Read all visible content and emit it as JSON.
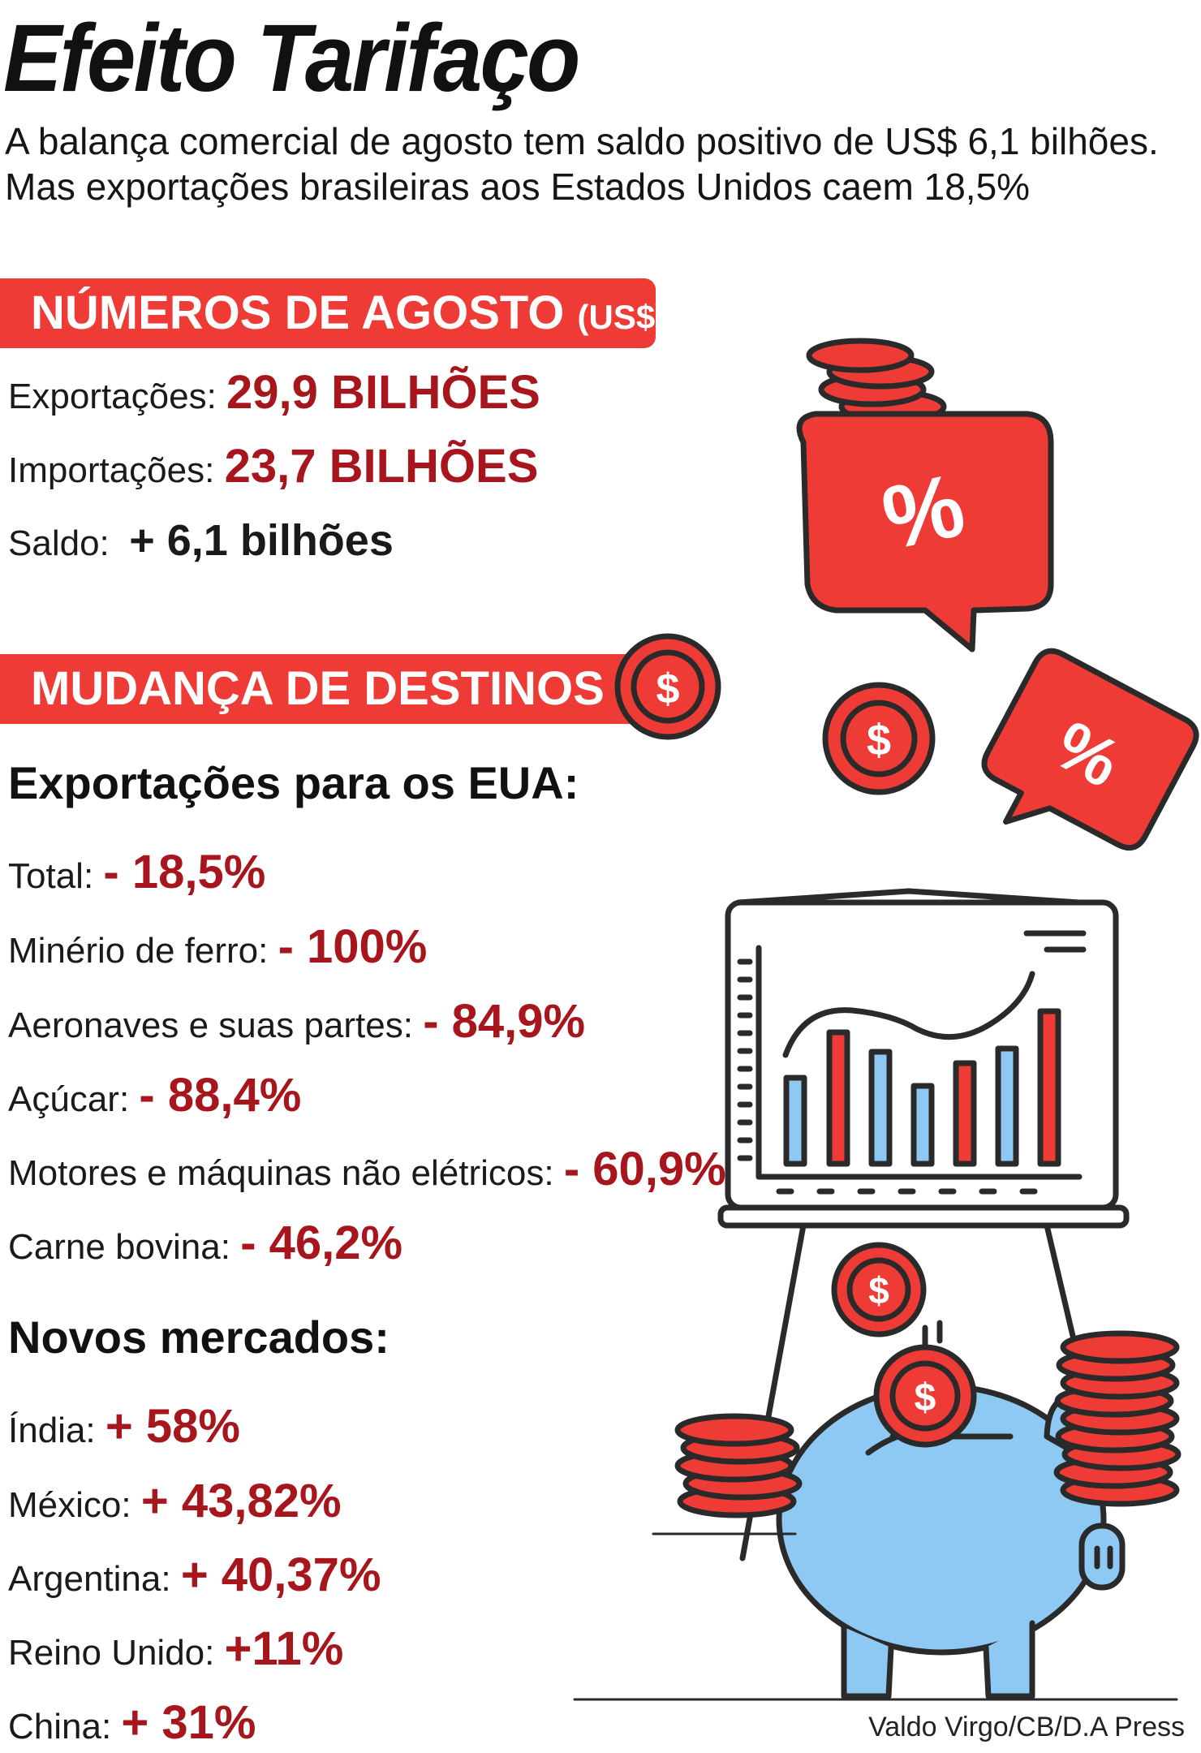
{
  "title": "Efeito Tarifaço",
  "subtitle_line1": "A balança comercial de agosto tem saldo positivo de US$ 6,1 bilhões.",
  "subtitle_line2": "Mas exportações brasileiras aos Estados Unidos caem 18,5%",
  "section1": {
    "heading": "NÚMEROS DE AGOSTO",
    "heading_unit": "(US$)",
    "items": [
      {
        "label": "Exportações:",
        "value": "29,9 BILHÕES"
      },
      {
        "label": "Importações:",
        "value": "23,7 BILHÕES"
      },
      {
        "label": "Saldo:",
        "value": "+ 6,1 bilhões"
      }
    ]
  },
  "section2": {
    "heading": "MUDANÇA DE DESTINOS",
    "usa_heading": "Exportações para os EUA:",
    "usa_items": [
      {
        "label": "Total:",
        "value": "- 18,5%"
      },
      {
        "label": "Minério de ferro:",
        "value": "- 100%"
      },
      {
        "label": "Aeronaves e suas partes:",
        "value": "- 84,9%"
      },
      {
        "label": "Açúcar:",
        "value": "- 88,4%"
      },
      {
        "label": "Motores e máquinas não elétricos:",
        "value": "- 60,9%"
      },
      {
        "label": "Carne bovina:",
        "value": "- 46,2%"
      }
    ],
    "new_heading": "Novos mercados:",
    "new_items": [
      {
        "label": "Índia:",
        "value": "+ 58%"
      },
      {
        "label": "México:",
        "value": "+ 43,82%"
      },
      {
        "label": "Argentina:",
        "value": "+ 40,37%"
      },
      {
        "label": "Reino Unido:",
        "value": "+11%"
      },
      {
        "label": "China:",
        "value": "+ 31%"
      }
    ]
  },
  "credit": "Valdo Virgo/CB/D.A Press",
  "icons": {
    "coin_symbol": "$",
    "percent_symbol": "%",
    "names": [
      "coin-stack-icon",
      "percent-bubble-icon",
      "coin-icon",
      "chart-board-icon",
      "piggy-bank-icon"
    ]
  },
  "colors": {
    "accent_red": "#ee3b36",
    "value_red": "#a6161c",
    "piggy_blue": "#8dc9f2",
    "outline": "#2a2a2a"
  }
}
